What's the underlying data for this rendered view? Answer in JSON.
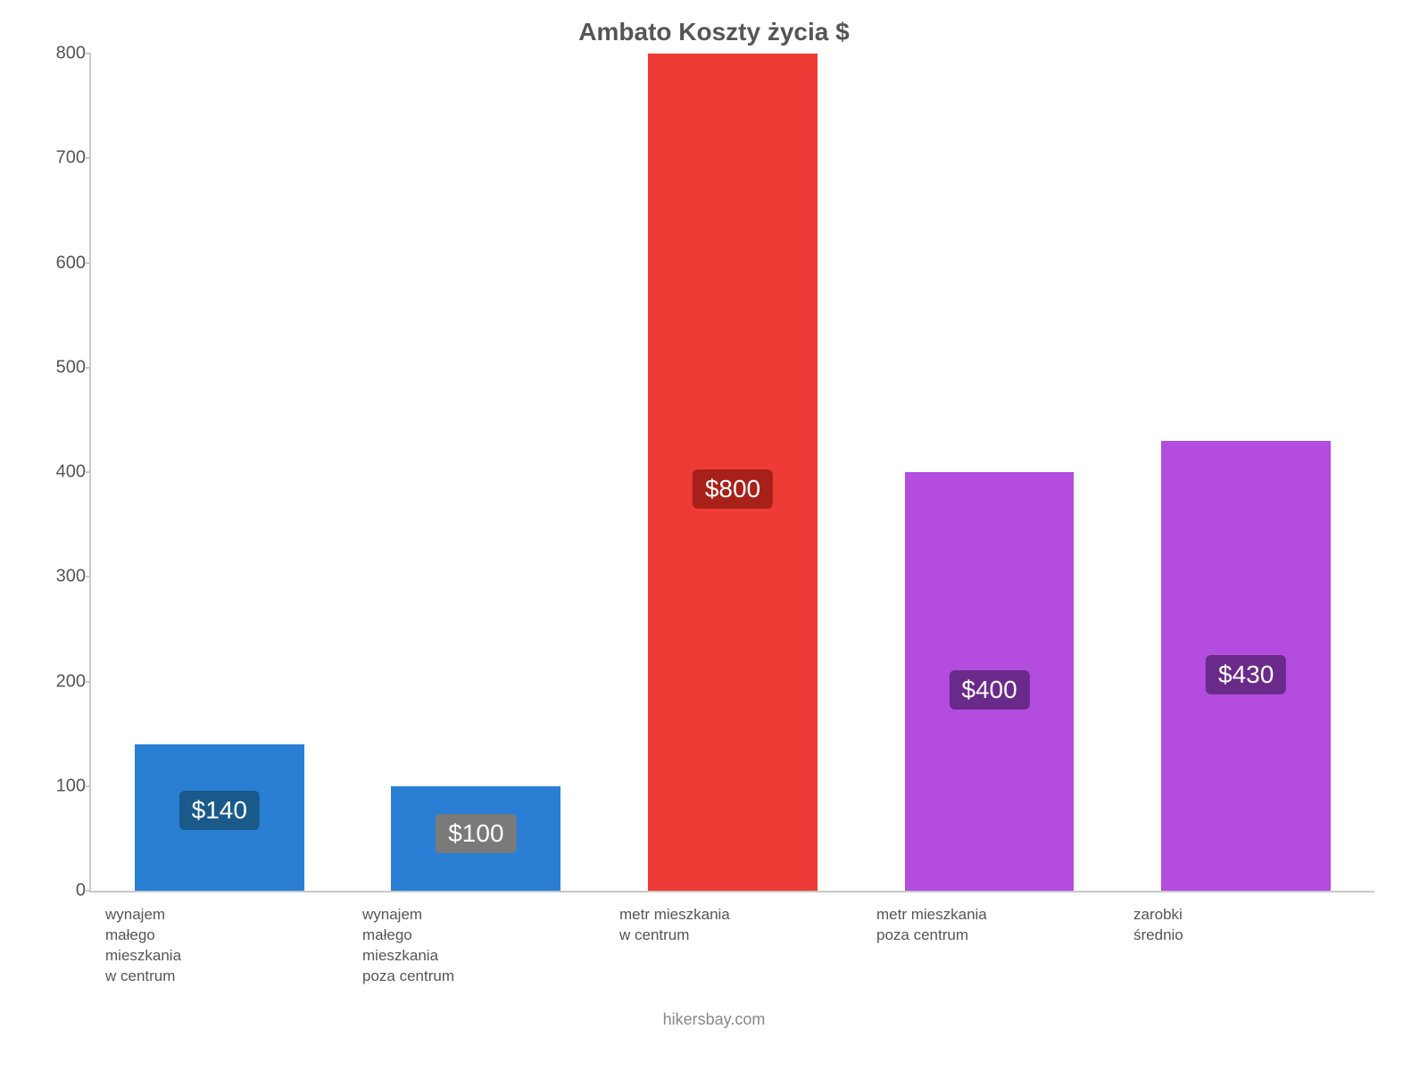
{
  "chart": {
    "type": "bar",
    "title": "Ambato Koszty życia $",
    "title_fontsize": 28,
    "title_color": "#555555",
    "background_color": "#ffffff",
    "axis_color": "#c9c9c9",
    "tick_label_color": "#555555",
    "tick_label_fontsize": 20,
    "xlabel_fontsize": 17,
    "value_label_fontsize": 28,
    "ylim": [
      0,
      800
    ],
    "yticks": [
      0,
      100,
      200,
      300,
      400,
      500,
      600,
      700,
      800
    ],
    "bar_width_ratio": 0.66,
    "bars": [
      {
        "category": "wynajem\nmałego\nmieszkania\nw centrum",
        "value": 140,
        "value_label": "$140",
        "bar_color": "#2a7fd4",
        "badge_bg": "#1a5a8a",
        "badge_text_color": "#ffffff"
      },
      {
        "category": "wynajem\nmałego\nmieszkania\npoza centrum",
        "value": 100,
        "value_label": "$100",
        "bar_color": "#2a7fd4",
        "badge_bg": "#7a7a7a",
        "badge_text_color": "#ffffff"
      },
      {
        "category": "metr mieszkania\nw centrum",
        "value": 800,
        "value_label": "$800",
        "bar_color": "#ef3b36",
        "badge_bg": "#a8201a",
        "badge_text_color": "#ffffff"
      },
      {
        "category": "metr mieszkania\npoza centrum",
        "value": 400,
        "value_label": "$400",
        "bar_color": "#b44ce0",
        "badge_bg": "#6a2a8a",
        "badge_text_color": "#ffffff"
      },
      {
        "category": "zarobki\nśrednio",
        "value": 430,
        "value_label": "$430",
        "bar_color": "#b44ce0",
        "badge_bg": "#6a2a8a",
        "badge_text_color": "#ffffff"
      }
    ],
    "footer": "hikersbay.com",
    "footer_color": "#888888",
    "footer_fontsize": 18
  }
}
